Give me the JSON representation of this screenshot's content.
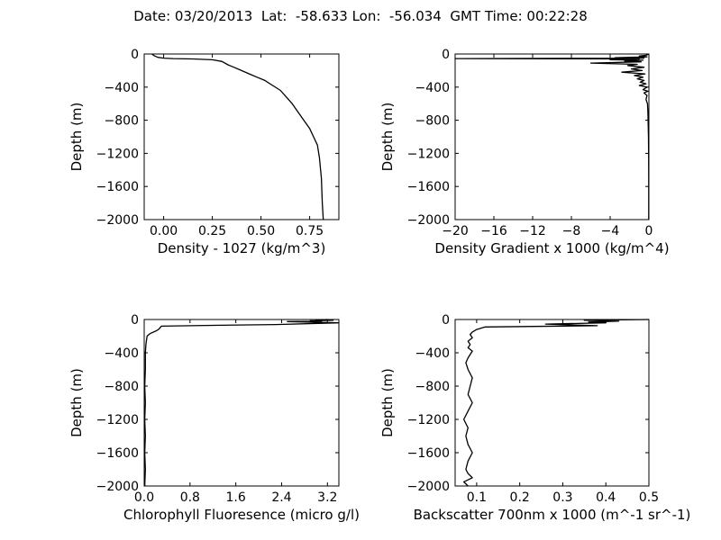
{
  "title": "Date: 03/20/2013  Lat:  -58.633 Lon:  -56.034  GMT Time: 00:22:28",
  "chart_data": [
    {
      "type": "line",
      "xlabel": "Density - 1027 (kg/m^3)",
      "ylabel": "Depth (m)",
      "xlim": [
        -0.1,
        0.9
      ],
      "ylim": [
        -2000,
        0
      ],
      "xticks": [
        0.0,
        0.25,
        0.5,
        0.75
      ],
      "xtick_labels": [
        "0.00",
        "0.25",
        "0.50",
        "0.75"
      ],
      "yticks": [
        0,
        -400,
        -800,
        -1200,
        -1600,
        -2000
      ],
      "ytick_labels": [
        "0",
        "−400",
        "−800",
        "−1200",
        "−1600",
        "−2000"
      ],
      "grid": false,
      "series": [
        {
          "x": [
            -0.06,
            -0.05,
            -0.03,
            0.0,
            0.05,
            0.15,
            0.25,
            0.3,
            0.33,
            0.36,
            0.4,
            0.44,
            0.48,
            0.52,
            0.56,
            0.6,
            0.63,
            0.66,
            0.69,
            0.72,
            0.75,
            0.77,
            0.79,
            0.8,
            0.81,
            0.815,
            0.82
          ],
          "y": [
            0,
            -20,
            -40,
            -50,
            -55,
            -60,
            -70,
            -90,
            -130,
            -160,
            -200,
            -240,
            -280,
            -320,
            -380,
            -440,
            -520,
            -600,
            -700,
            -800,
            -900,
            -1000,
            -1100,
            -1250,
            -1500,
            -1800,
            -2000
          ]
        }
      ]
    },
    {
      "type": "line",
      "xlabel": "Density Gradient x 1000 (kg/m^4)",
      "ylabel": "Depth (m)",
      "xlim": [
        -20,
        0
      ],
      "ylim": [
        -2000,
        0
      ],
      "xticks": [
        -20,
        -16,
        -12,
        -8,
        -4,
        0
      ],
      "xtick_labels": [
        "−20",
        "−16",
        "−12",
        "−8",
        "−4",
        "0"
      ],
      "yticks": [
        0,
        -400,
        -800,
        -1200,
        -1600,
        -2000
      ],
      "ytick_labels": [
        "0",
        "−400",
        "−800",
        "−1200",
        "−1600",
        "−2000"
      ],
      "grid": false,
      "series": [
        {
          "x": [
            0,
            -0.3,
            -1.0,
            -0.2,
            -3.5,
            -0.5,
            -20,
            -1.0,
            -4.0,
            -0.6,
            -2.5,
            -0.8,
            -6.0,
            -1.2,
            -2.2,
            -0.5,
            -1.8,
            -0.7,
            -2.8,
            -0.4,
            -1.5,
            -0.6,
            -1.2,
            -0.5,
            -0.9,
            -0.3,
            -1.0,
            -0.2,
            -0.6,
            -0.1,
            -0.5,
            -0.2,
            -0.3,
            -0.15,
            -0.1,
            -0.08,
            -0.05,
            -0.03,
            -0.02,
            -0.02
          ],
          "y": [
            0,
            -15,
            -25,
            -35,
            -45,
            -50,
            -55,
            -60,
            -70,
            -75,
            -85,
            -95,
            -110,
            -125,
            -140,
            -160,
            -180,
            -200,
            -220,
            -240,
            -260,
            -280,
            -300,
            -320,
            -340,
            -360,
            -380,
            -400,
            -430,
            -450,
            -470,
            -500,
            -550,
            -600,
            -700,
            -800,
            -1000,
            -1200,
            -1500,
            -2000
          ]
        }
      ]
    },
    {
      "type": "line",
      "xlabel": "Chlorophyll Fluoresence (micro g/l)",
      "ylabel": "Depth (m)",
      "xlim": [
        0,
        3.4
      ],
      "ylim": [
        -2000,
        0
      ],
      "xticks": [
        0.0,
        0.8,
        1.6,
        2.4,
        3.2
      ],
      "xtick_labels": [
        "0.0",
        "0.8",
        "1.6",
        "2.4",
        "3.2"
      ],
      "yticks": [
        0,
        -400,
        -800,
        -1200,
        -1600,
        -2000
      ],
      "ytick_labels": [
        "0",
        "−400",
        "−800",
        "−1200",
        "−1600",
        "−2000"
      ],
      "grid": false,
      "series": [
        {
          "x": [
            3.2,
            3.0,
            3.3,
            2.9,
            3.1,
            2.5,
            3.4,
            2.3,
            1.2,
            0.3,
            0.25,
            0.2,
            0.1,
            0.05,
            0.03,
            0.02,
            0.02,
            0.01,
            0.02,
            0.01,
            0.02,
            0.01,
            0.02,
            0.01
          ],
          "y": [
            0,
            -5,
            -10,
            -15,
            -20,
            -25,
            -40,
            -60,
            -70,
            -80,
            -120,
            -140,
            -170,
            -200,
            -300,
            -400,
            -600,
            -800,
            -1000,
            -1200,
            -1400,
            -1600,
            -1800,
            -2000
          ]
        }
      ]
    },
    {
      "type": "line",
      "xlabel": "Backscatter 700nm x 1000 (m^-1 sr^-1)",
      "ylabel": "Depth (m)",
      "xlim": [
        0.05,
        0.5
      ],
      "ylim": [
        -2000,
        0
      ],
      "xticks": [
        0.1,
        0.2,
        0.3,
        0.4,
        0.5
      ],
      "xtick_labels": [
        "0.1",
        "0.2",
        "0.3",
        "0.4",
        "0.5"
      ],
      "yticks": [
        0,
        -400,
        -800,
        -1200,
        -1600,
        -2000
      ],
      "ytick_labels": [
        "0",
        "−400",
        "−800",
        "−1200",
        "−1600",
        "−2000"
      ],
      "grid": false,
      "series": [
        {
          "x": [
            0.5,
            0.35,
            0.43,
            0.36,
            0.4,
            0.26,
            0.38,
            0.12,
            0.1,
            0.09,
            0.085,
            0.09,
            0.08,
            0.085,
            0.08,
            0.09,
            0.085,
            0.08,
            0.075,
            0.08,
            0.09,
            0.085,
            0.08,
            0.09,
            0.08,
            0.07,
            0.08,
            0.075,
            0.08,
            0.09,
            0.08,
            0.075,
            0.08,
            0.09,
            0.07,
            0.08
          ],
          "y": [
            0,
            -10,
            -20,
            -30,
            -40,
            -55,
            -75,
            -90,
            -120,
            -150,
            -180,
            -220,
            -260,
            -300,
            -340,
            -380,
            -420,
            -460,
            -520,
            -600,
            -700,
            -800,
            -900,
            -1000,
            -1100,
            -1200,
            -1300,
            -1400,
            -1500,
            -1600,
            -1700,
            -1800,
            -1850,
            -1900,
            -1950,
            -2000
          ]
        }
      ]
    }
  ]
}
